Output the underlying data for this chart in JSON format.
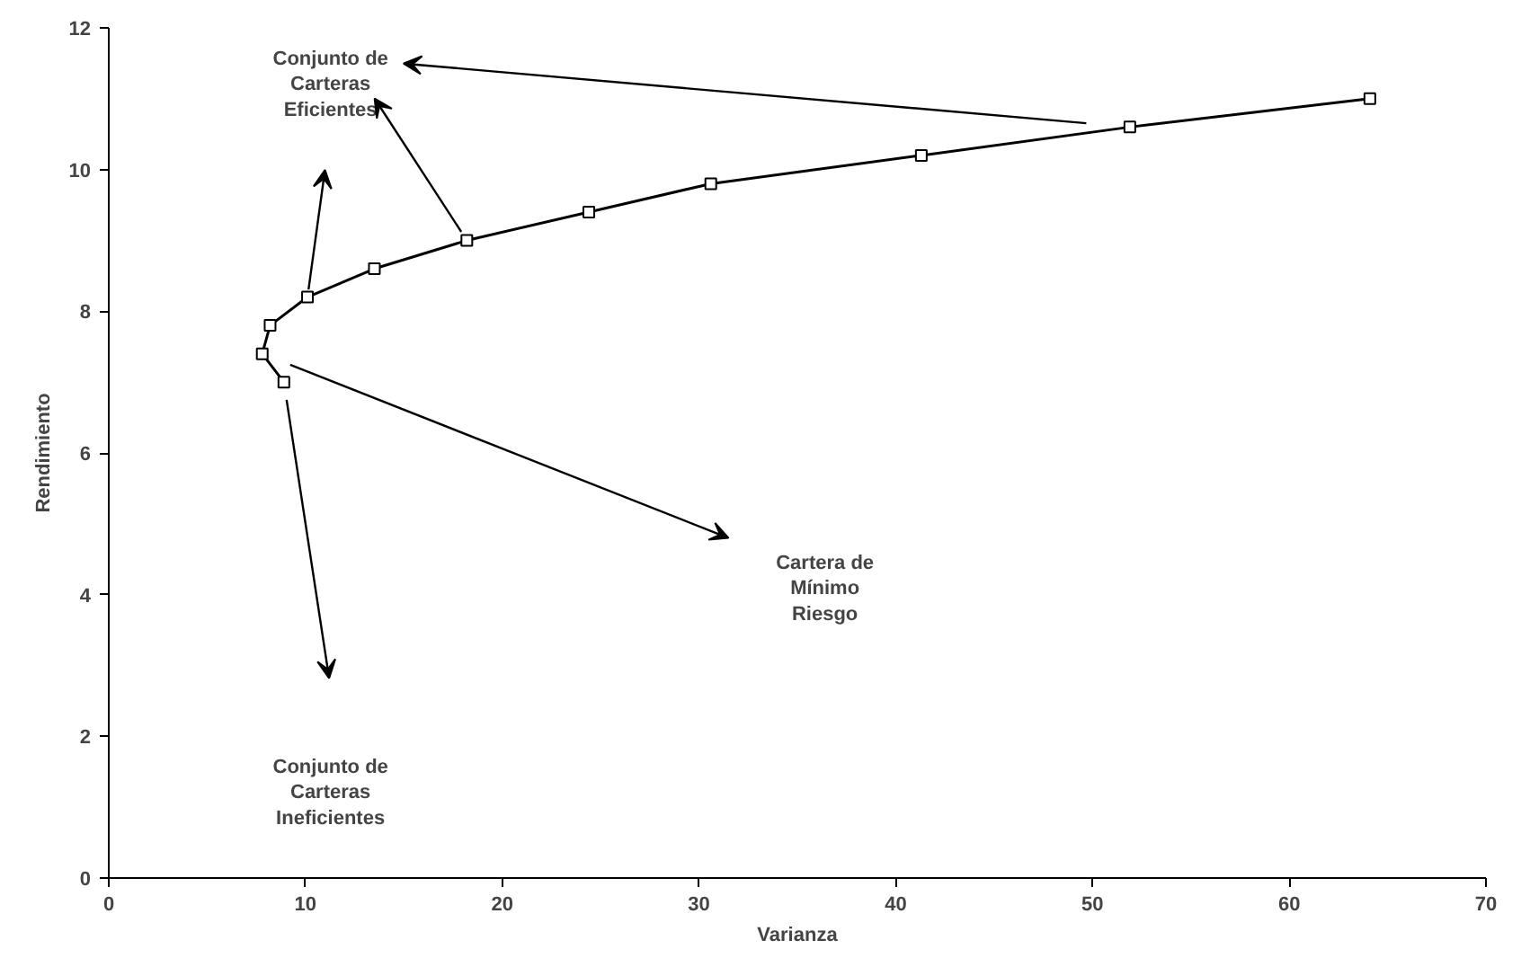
{
  "chart_data": {
    "type": "line",
    "xlabel": "Varianza",
    "ylabel": "Rendimiento",
    "x": [
      8.9,
      7.8,
      8.2,
      10.1,
      13.5,
      18.2,
      24.4,
      30.6,
      41.3,
      51.9,
      64.1
    ],
    "series": [
      {
        "color": "#000000",
        "values": [
          7.0,
          7.4,
          7.8,
          8.2,
          8.6,
          9.0,
          9.4,
          9.8,
          10.2,
          10.6,
          11.0
        ]
      }
    ],
    "marker": "square",
    "line_style": "solid",
    "grid": false,
    "xlim": [
      0,
      70
    ],
    "ylim": [
      0,
      12
    ],
    "xticks": [
      0,
      10,
      20,
      30,
      40,
      50,
      60,
      70
    ],
    "yticks": [
      0,
      2,
      4,
      6,
      8,
      10,
      12
    ],
    "annotations": [
      "Conjunto de\nCarteras\nEficientes",
      "Cartera de\nMínimo\nRiesgo",
      "Conjunto de\nCarteras\nIneficientes"
    ]
  }
}
